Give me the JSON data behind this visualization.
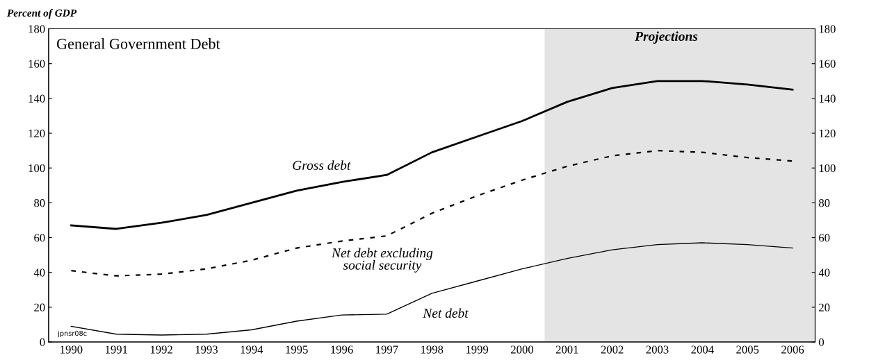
{
  "chart_data": {
    "type": "line",
    "title": "General Government Debt",
    "ylabel": "Percent of GDP",
    "x": [
      1990,
      1991,
      1992,
      1993,
      1994,
      1995,
      1996,
      1997,
      1998,
      1999,
      2000,
      2001,
      2002,
      2003,
      2004,
      2005,
      2006
    ],
    "series": [
      {
        "name": "Gross debt",
        "color": "#000000",
        "line_style": "solid",
        "values": [
          67,
          65,
          68.5,
          73,
          80,
          87,
          92,
          96,
          109,
          118,
          127,
          138,
          146,
          150,
          150,
          148,
          145
        ]
      },
      {
        "name": "Net debt excluding social security",
        "color": "#000000",
        "line_style": "dashed",
        "values": [
          41,
          38,
          39,
          42,
          47,
          54,
          58,
          61,
          74,
          84,
          93,
          101,
          107,
          110,
          109,
          106,
          104
        ]
      },
      {
        "name": "Net debt",
        "color": "#000000",
        "line_style": "solid",
        "values": [
          9,
          4.5,
          4,
          4.5,
          7,
          12,
          15.5,
          16,
          28,
          35,
          42,
          48,
          53,
          56,
          57,
          56,
          54
        ]
      }
    ],
    "xlim": [
      1989.5,
      2006.5
    ],
    "xticks": [
      1990,
      1991,
      1992,
      1993,
      1994,
      1995,
      1996,
      1997,
      1998,
      1999,
      2000,
      2001,
      2002,
      2003,
      2004,
      2005,
      2006
    ],
    "ylim": [
      0,
      180
    ],
    "yticks": [
      0,
      20,
      40,
      60,
      80,
      100,
      120,
      140,
      160,
      180
    ],
    "y2lim": [
      0,
      180
    ],
    "y2ticks": [
      0,
      20,
      40,
      60,
      80,
      100,
      120,
      140,
      160,
      180
    ],
    "bands": [
      {
        "axis": "x",
        "from": 2000.5,
        "to": 2006.5,
        "label": "Projections",
        "color": "#e4e4e4"
      }
    ],
    "annotations": [
      "jpnsr08c"
    ],
    "grid": false,
    "legend": false
  }
}
